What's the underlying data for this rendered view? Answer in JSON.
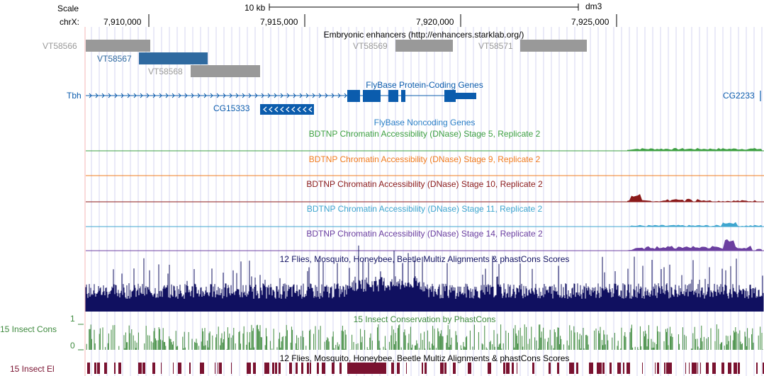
{
  "browser": {
    "scale_label": "Scale",
    "scale_bar_text": "10 kb",
    "assembly": "dm3",
    "chrom_label": "chrX:",
    "positions": [
      "7,910,000",
      "7,915,000",
      "7,920,000",
      "7,925,000"
    ]
  },
  "tracks": {
    "enhancers": {
      "title": "Embryonic enhancers (http://enhancers.starklab.org/)",
      "items": [
        {
          "name": "VT58566",
          "color": "#999999"
        },
        {
          "name": "VT58567",
          "color": "#2f6aa0"
        },
        {
          "name": "VT58568",
          "color": "#999999"
        },
        {
          "name": "VT58569",
          "color": "#999999"
        },
        {
          "name": "VT58571",
          "color": "#999999"
        }
      ]
    },
    "flybase_coding": {
      "title": "FlyBase Protein-Coding Genes",
      "genes": [
        {
          "name": "Tbh"
        },
        {
          "name": "CG15333"
        },
        {
          "name": "CG2233"
        }
      ],
      "color": "#0b5cad"
    },
    "flybase_noncoding": {
      "title": "FlyBase Noncoding Genes",
      "color": "#2a7fc7"
    },
    "dnase": [
      {
        "title": "BDTNP Chromatin Accessibility (DNase) Stage 5, Replicate 2",
        "color": "#3ea043"
      },
      {
        "title": "BDTNP Chromatin Accessibility (DNase) Stage 9, Replicate 2",
        "color": "#f07c1f"
      },
      {
        "title": "BDTNP Chromatin Accessibility (DNase) Stage 10, Replicate 2",
        "color": "#8b1a1a"
      },
      {
        "title": "BDTNP Chromatin Accessibility (DNase) Stage 11, Replicate 2",
        "color": "#3fa6cf"
      },
      {
        "title": "BDTNP Chromatin Accessibility (DNase) Stage 14, Replicate 2",
        "color": "#6b3fa0"
      }
    ],
    "multiz": {
      "title": "12 Flies, Mosquito, Honeybee, Beetle Multiz Alignments & phastCons Scores",
      "color": "#101060"
    },
    "phastcons": {
      "title": "15 Insect Conservation by PhastCons",
      "left_label": "15 Insect Cons",
      "axis_max": "1",
      "axis_min": "0",
      "color": "#3e8a3e"
    },
    "elements": {
      "title": "12 Flies, Mosquito, Honeybee, Beetle Multiz Alignments & phastCons Scores",
      "left_label": "15 Insect El",
      "color": "#7a1230"
    }
  }
}
